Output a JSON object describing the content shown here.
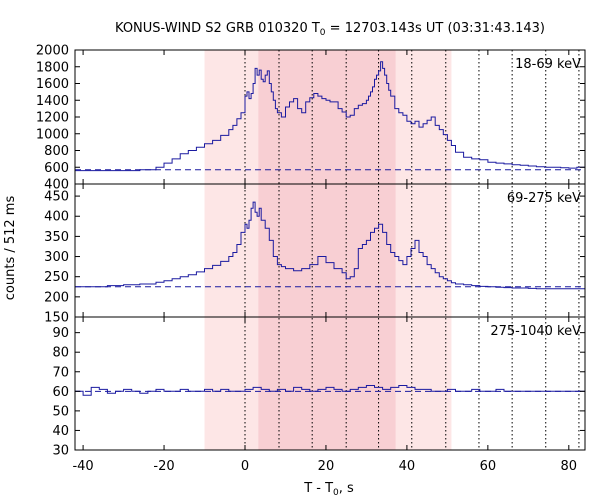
{
  "chart_data": {
    "type": "line",
    "title": {
      "prefix": "KONUS-WIND S2 GRB 010320 T",
      "sub": "0",
      "suffix": " = 12703.143s UT (03:31:43.143)"
    },
    "xlabel": {
      "prefix": "T - T",
      "sub": "0",
      "suffix": ", s"
    },
    "ylabel": "counts / 512 ms",
    "xlim": [
      -42,
      84
    ],
    "xticks": [
      -40,
      -20,
      0,
      20,
      40,
      60,
      80
    ],
    "xtick_labels": [
      "-40",
      "-20",
      "0",
      "20",
      "40",
      "60",
      "80"
    ],
    "grid": false,
    "colors": {
      "line": "#1a1aa0",
      "background_dashed": "#1a1aa0",
      "shade_light": "#fde6e6",
      "shade_dark": "#f8cfd3",
      "vline": "#000000"
    },
    "shaded_intervals": [
      {
        "x0": -10,
        "x1": 51,
        "tone": "light"
      },
      {
        "x0": 3.3,
        "x1": 37.2,
        "tone": "dark"
      }
    ],
    "vlines": [
      0,
      8.4,
      16.6,
      25,
      33,
      41.2,
      49.6,
      57.8,
      66,
      74.3,
      82.5
    ],
    "panels": [
      {
        "label": "18-69 keV",
        "ylim": [
          400,
          2000
        ],
        "yticks": [
          400,
          600,
          800,
          1000,
          1200,
          1400,
          1600,
          1800,
          2000
        ],
        "ytick_labels": [
          "400",
          "600",
          "800",
          "1000",
          "1200",
          "1400",
          "1600",
          "1800",
          "2000"
        ],
        "background": 570,
        "series": {
          "x": [
            -42,
            -32,
            -26,
            -22,
            -20,
            -18,
            -16,
            -14,
            -12,
            -10,
            -8,
            -6,
            -4,
            -3,
            -2,
            -1,
            0,
            0.5,
            1,
            1.5,
            2,
            2.5,
            3,
            3.5,
            4,
            4.5,
            5,
            5.5,
            6,
            6.5,
            7,
            7.5,
            8,
            9,
            10,
            11,
            12,
            13,
            14,
            15,
            16,
            17,
            18,
            19,
            20,
            21,
            22,
            23,
            24,
            25,
            26,
            27,
            28,
            29,
            30,
            30.5,
            31,
            31.5,
            32,
            32.5,
            33,
            33.5,
            34,
            34.5,
            35,
            35.5,
            36,
            37,
            38,
            39,
            40,
            41,
            42,
            43,
            44,
            45,
            46,
            47,
            48,
            49,
            50,
            51,
            52,
            54,
            56,
            58,
            60,
            62,
            64,
            66,
            68,
            70,
            72,
            74,
            76,
            78,
            80,
            82,
            84
          ],
          "y": [
            560,
            560,
            570,
            600,
            650,
            700,
            760,
            800,
            840,
            880,
            920,
            980,
            1050,
            1100,
            1180,
            1250,
            1450,
            1500,
            1420,
            1480,
            1600,
            1780,
            1700,
            1760,
            1650,
            1620,
            1700,
            1750,
            1600,
            1500,
            1400,
            1300,
            1250,
            1200,
            1320,
            1380,
            1420,
            1300,
            1250,
            1380,
            1430,
            1480,
            1450,
            1420,
            1400,
            1380,
            1380,
            1300,
            1260,
            1200,
            1220,
            1300,
            1340,
            1360,
            1400,
            1450,
            1500,
            1560,
            1650,
            1700,
            1750,
            1860,
            1780,
            1700,
            1600,
            1520,
            1450,
            1300,
            1250,
            1220,
            1150,
            1120,
            1150,
            1080,
            1120,
            1160,
            1200,
            1100,
            1050,
            990,
            920,
            860,
            780,
            720,
            700,
            690,
            660,
            650,
            640,
            630,
            625,
            615,
            605,
            600,
            600,
            595,
            590,
            600,
            600
          ]
        }
      },
      {
        "label": "69-275 keV",
        "ylim": [
          150,
          480
        ],
        "yticks": [
          150,
          200,
          250,
          300,
          350,
          400,
          450
        ],
        "ytick_labels": [
          "150",
          "200",
          "250",
          "300",
          "350",
          "400",
          "450"
        ],
        "background": 225,
        "series": {
          "x": [
            -42,
            -38,
            -34,
            -30,
            -26,
            -22,
            -20,
            -18,
            -16,
            -14,
            -12,
            -10,
            -8,
            -6,
            -4,
            -3,
            -2,
            -1,
            0,
            0.5,
            1,
            1.5,
            2,
            2.5,
            3,
            3.5,
            4,
            5,
            6,
            7,
            8,
            9,
            10,
            12,
            14,
            16,
            18,
            20,
            22,
            24,
            25,
            26,
            27,
            28,
            29,
            30,
            31,
            32,
            33,
            34,
            35,
            36,
            37,
            38,
            39,
            40,
            41,
            42,
            43,
            44,
            45,
            46,
            47,
            48,
            49,
            50,
            51,
            52,
            54,
            56,
            58,
            60,
            62,
            64,
            66,
            68,
            70,
            72,
            74,
            76,
            78,
            80,
            82,
            84
          ],
          "y": [
            225,
            225,
            228,
            230,
            232,
            236,
            240,
            245,
            250,
            255,
            262,
            270,
            278,
            288,
            300,
            310,
            330,
            360,
            380,
            370,
            390,
            420,
            435,
            410,
            400,
            420,
            390,
            370,
            340,
            300,
            280,
            275,
            270,
            265,
            270,
            280,
            300,
            285,
            270,
            260,
            245,
            250,
            270,
            320,
            330,
            340,
            360,
            370,
            380,
            360,
            330,
            310,
            300,
            290,
            280,
            300,
            320,
            340,
            310,
            300,
            280,
            270,
            260,
            250,
            245,
            240,
            235,
            232,
            230,
            228,
            226,
            225,
            224,
            223,
            222,
            222,
            221,
            220,
            220,
            220,
            220,
            220,
            220,
            220
          ]
        }
      },
      {
        "label": "275-1040 keV",
        "ylim": [
          30,
          98
        ],
        "yticks": [
          30,
          40,
          50,
          60,
          70,
          80,
          90
        ],
        "ytick_labels": [
          "30",
          "40",
          "50",
          "60",
          "70",
          "80",
          "90"
        ],
        "background": 60,
        "series": {
          "x": [
            -42,
            -40,
            -38,
            -36,
            -34,
            -32,
            -30,
            -28,
            -26,
            -24,
            -22,
            -20,
            -18,
            -16,
            -14,
            -12,
            -10,
            -8,
            -6,
            -4,
            -2,
            0,
            2,
            4,
            6,
            8,
            10,
            12,
            14,
            16,
            18,
            20,
            22,
            24,
            26,
            28,
            30,
            32,
            34,
            36,
            38,
            40,
            42,
            44,
            46,
            48,
            50,
            52,
            54,
            56,
            58,
            60,
            62,
            64,
            66,
            68,
            70,
            72,
            74,
            76,
            78,
            80,
            82,
            84
          ],
          "y": [
            60,
            58,
            62,
            61,
            59,
            60,
            61,
            60,
            59,
            60,
            61,
            60,
            60,
            61,
            60,
            60,
            61,
            60,
            61,
            60,
            60,
            61,
            62,
            61,
            60,
            61,
            60,
            62,
            61,
            60,
            61,
            62,
            61,
            60,
            61,
            62,
            63,
            62,
            61,
            62,
            63,
            62,
            61,
            61,
            60,
            60,
            61,
            60,
            60,
            61,
            60,
            60,
            61,
            60,
            60,
            60,
            60,
            60,
            60,
            60,
            60,
            60,
            60,
            60
          ]
        }
      }
    ]
  }
}
